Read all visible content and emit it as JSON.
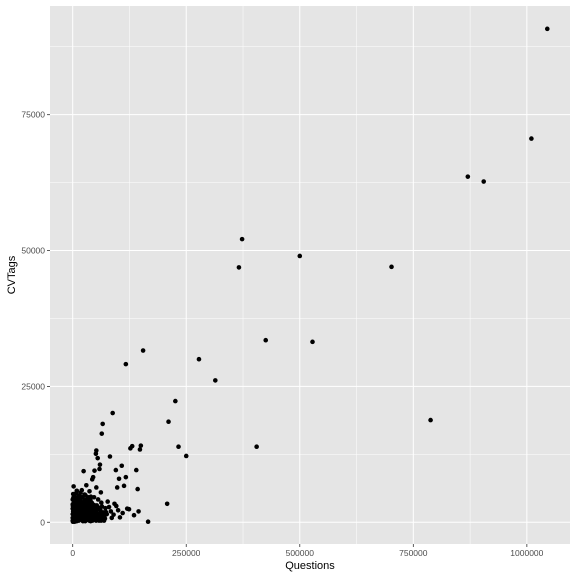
{
  "chart_data": {
    "type": "scatter",
    "title": "",
    "xlabel": "Questions",
    "ylabel": "CVTags",
    "xlim": [
      -50000,
      1095000
    ],
    "ylim": [
      -4000,
      95000
    ],
    "x_ticks": [
      0,
      250000,
      500000,
      750000,
      1000000
    ],
    "x_tick_labels": [
      "0",
      "250000",
      "500000",
      "750000",
      "1000000"
    ],
    "x_minor_ticks": [
      125000,
      375000,
      625000,
      875000
    ],
    "y_ticks": [
      0,
      25000,
      50000,
      75000
    ],
    "y_tick_labels": [
      "0",
      "25000",
      "50000",
      "75000"
    ],
    "y_minor_ticks": [
      12500,
      37500,
      62500,
      87500
    ],
    "grid": true,
    "panel_color": "#e5e5e5",
    "gridline_color": "#ffffff",
    "point_color": "#000000",
    "series": [
      {
        "points": [
          [
            1045000,
            90800
          ],
          [
            1010000,
            70600
          ],
          [
            905000,
            62700
          ],
          [
            870000,
            63600
          ],
          [
            788000,
            18800
          ],
          [
            702000,
            47000
          ],
          [
            528000,
            33200
          ],
          [
            500000,
            49000
          ],
          [
            425000,
            33500
          ],
          [
            405000,
            13900
          ],
          [
            373000,
            52100
          ],
          [
            366000,
            46900
          ],
          [
            314000,
            26100
          ],
          [
            278000,
            30000
          ],
          [
            250000,
            12200
          ],
          [
            233000,
            13900
          ],
          [
            226000,
            22300
          ],
          [
            211000,
            18500
          ],
          [
            208000,
            3400
          ],
          [
            166000,
            100
          ],
          [
            155000,
            31600
          ],
          [
            150000,
            14100
          ],
          [
            148000,
            13400
          ],
          [
            143000,
            6100
          ],
          [
            140000,
            9600
          ],
          [
            131000,
            14000
          ],
          [
            127000,
            13600
          ],
          [
            124000,
            2400
          ],
          [
            117000,
            29100
          ],
          [
            117000,
            8300
          ],
          [
            113000,
            6700
          ],
          [
            108000,
            10400
          ],
          [
            102000,
            8000
          ],
          [
            98000,
            6400
          ],
          [
            95000,
            9600
          ],
          [
            92000,
            3400
          ],
          [
            88000,
            20100
          ],
          [
            86000,
            800
          ],
          [
            82000,
            12100
          ],
          [
            80000,
            2800
          ],
          [
            66000,
            18100
          ],
          [
            64000,
            16300
          ],
          [
            64000,
            1600
          ],
          [
            60000,
            10600
          ],
          [
            59000,
            9800
          ],
          [
            57000,
            2700
          ],
          [
            55000,
            11800
          ],
          [
            52000,
            13200
          ],
          [
            51000,
            12600
          ],
          [
            52000,
            6400
          ],
          [
            48000,
            9500
          ],
          [
            47000,
            4600
          ],
          [
            45000,
            8300
          ],
          [
            43000,
            7900
          ],
          [
            40000,
            2100
          ],
          [
            37000,
            5700
          ],
          [
            33000,
            4300
          ],
          [
            30000,
            6800
          ],
          [
            28000,
            5000
          ],
          [
            24000,
            9400
          ],
          [
            22000,
            4600
          ],
          [
            20000,
            3500
          ],
          [
            17000,
            2400
          ],
          [
            14000,
            3500
          ],
          [
            11000,
            2100
          ],
          [
            8000,
            1600
          ],
          [
            6000,
            3400
          ],
          [
            4000,
            5000
          ],
          [
            2000,
            6600
          ],
          [
            1000,
            2000
          ],
          [
            0,
            800
          ],
          [
            0,
            300
          ],
          [
            1500,
            4500
          ],
          [
            3000,
            1200
          ],
          [
            5000,
            2500
          ],
          [
            6000,
            600
          ],
          [
            7000,
            3800
          ],
          [
            9000,
            4000
          ],
          [
            10000,
            1000
          ],
          [
            12000,
            2800
          ],
          [
            13000,
            600
          ],
          [
            15000,
            4700
          ],
          [
            16000,
            1500
          ],
          [
            18000,
            900
          ],
          [
            19000,
            3100
          ],
          [
            21000,
            2000
          ],
          [
            23000,
            1200
          ],
          [
            25000,
            2800
          ],
          [
            26000,
            700
          ],
          [
            27000,
            3500
          ],
          [
            29000,
            1800
          ],
          [
            31000,
            900
          ],
          [
            32000,
            2500
          ],
          [
            34000,
            1500
          ],
          [
            35000,
            500
          ],
          [
            36000,
            3000
          ],
          [
            38000,
            1100
          ],
          [
            39000,
            4100
          ],
          [
            41000,
            600
          ],
          [
            42000,
            1900
          ],
          [
            44000,
            1300
          ],
          [
            46000,
            2200
          ],
          [
            49000,
            700
          ],
          [
            50000,
            1700
          ],
          [
            53000,
            3100
          ],
          [
            54000,
            1100
          ],
          [
            56000,
            4200
          ],
          [
            58000,
            300
          ],
          [
            61000,
            2200
          ],
          [
            62000,
            5500
          ],
          [
            63000,
            3600
          ],
          [
            65000,
            800
          ],
          [
            68000,
            1800
          ],
          [
            70000,
            1200
          ],
          [
            72000,
            2600
          ],
          [
            75000,
            1500
          ],
          [
            77000,
            3800
          ],
          [
            84000,
            2000
          ],
          [
            90000,
            1400
          ],
          [
            96000,
            3000
          ],
          [
            100000,
            2200
          ],
          [
            104000,
            900
          ],
          [
            110000,
            1700
          ],
          [
            120000,
            2500
          ],
          [
            135000,
            1300
          ],
          [
            145000,
            2000
          ],
          [
            500,
            100
          ],
          [
            1000,
            400
          ],
          [
            1500,
            200
          ],
          [
            2000,
            900
          ],
          [
            2500,
            1500
          ],
          [
            3000,
            300
          ],
          [
            3500,
            2200
          ],
          [
            4000,
            100
          ],
          [
            4500,
            700
          ],
          [
            5000,
            1300
          ],
          [
            5500,
            1900
          ],
          [
            6500,
            200
          ],
          [
            7000,
            1000
          ],
          [
            7500,
            2600
          ],
          [
            8000,
            400
          ],
          [
            8500,
            3000
          ],
          [
            9000,
            200
          ],
          [
            9500,
            1500
          ],
          [
            10500,
            2300
          ],
          [
            11000,
            500
          ],
          [
            11500,
            3300
          ],
          [
            12000,
            1100
          ],
          [
            12500,
            1800
          ],
          [
            13500,
            300
          ],
          [
            14000,
            2600
          ],
          [
            14500,
            1300
          ],
          [
            15500,
            600
          ],
          [
            16500,
            2000
          ],
          [
            17000,
            900
          ],
          [
            17500,
            3700
          ],
          [
            18500,
            1600
          ],
          [
            19500,
            500
          ],
          [
            20000,
            2400
          ],
          [
            20500,
            1100
          ],
          [
            21500,
            3600
          ],
          [
            22500,
            200
          ],
          [
            23500,
            1900
          ],
          [
            24500,
            600
          ],
          [
            25500,
            4000
          ],
          [
            26500,
            1500
          ],
          [
            27500,
            200
          ],
          [
            28500,
            2200
          ],
          [
            29500,
            400
          ],
          [
            30500,
            3100
          ],
          [
            31500,
            1300
          ],
          [
            32500,
            600
          ],
          [
            33500,
            1900
          ],
          [
            34500,
            2900
          ],
          [
            35500,
            1200
          ],
          [
            36500,
            300
          ],
          [
            37500,
            1700
          ],
          [
            38500,
            2500
          ],
          [
            39500,
            200
          ],
          [
            40500,
            1300
          ],
          [
            41500,
            3100
          ],
          [
            42500,
            800
          ],
          [
            43500,
            300
          ],
          [
            44500,
            2600
          ],
          [
            45500,
            1000
          ],
          [
            46500,
            3200
          ],
          [
            47500,
            1400
          ],
          [
            48500,
            500
          ],
          [
            49500,
            2700
          ],
          [
            50500,
            900
          ],
          [
            51500,
            300
          ],
          [
            52500,
            1700
          ],
          [
            53500,
            500
          ],
          [
            54500,
            2300
          ],
          [
            55500,
            1000
          ],
          [
            57500,
            1500
          ],
          [
            58500,
            2500
          ],
          [
            59500,
            600
          ],
          [
            60500,
            1400
          ],
          [
            62500,
            300
          ],
          [
            64500,
            2900
          ],
          [
            66000,
            600
          ],
          [
            67000,
            1300
          ],
          [
            69000,
            300
          ],
          [
            71000,
            700
          ],
          [
            73000,
            1900
          ],
          [
            0,
            1500
          ],
          [
            0,
            2500
          ],
          [
            0,
            3300
          ],
          [
            0,
            4200
          ],
          [
            500,
            3000
          ],
          [
            1000,
            5200
          ],
          [
            2000,
            3500
          ],
          [
            3000,
            4300
          ],
          [
            4000,
            2700
          ],
          [
            5000,
            3700
          ],
          [
            6000,
            4500
          ],
          [
            7000,
            5300
          ],
          [
            8000,
            2200
          ],
          [
            9000,
            5800
          ],
          [
            10000,
            3300
          ],
          [
            11000,
            4300
          ],
          [
            12000,
            3900
          ],
          [
            13000,
            2000
          ],
          [
            14000,
            4900
          ],
          [
            15000,
            3000
          ],
          [
            16000,
            4100
          ],
          [
            17000,
            5400
          ],
          [
            18000,
            2800
          ],
          [
            19000,
            4600
          ],
          [
            20000,
            5900
          ],
          [
            22000,
            3000
          ],
          [
            24000,
            3600
          ],
          [
            26000,
            5100
          ],
          [
            28000,
            3000
          ],
          [
            30000,
            4200
          ],
          [
            32000,
            3700
          ],
          [
            34000,
            4600
          ],
          [
            36000,
            2000
          ],
          [
            38000,
            3300
          ],
          [
            40000,
            4700
          ],
          [
            42000,
            3600
          ]
        ]
      }
    ]
  }
}
